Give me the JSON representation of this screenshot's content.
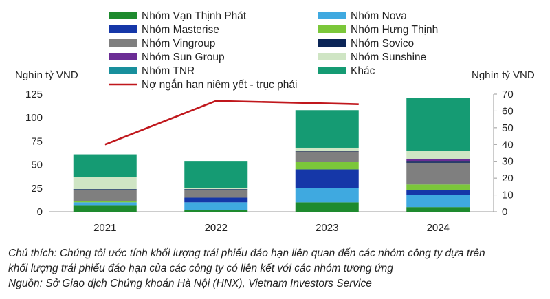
{
  "chart_data": {
    "type": "bar",
    "stacked": true,
    "categories": [
      "2021",
      "2022",
      "2023",
      "2024"
    ],
    "ylabel_left": "Nghìn tỷ VND",
    "ylabel_right": "Nghìn tỷ VND",
    "ylim_left": [
      0,
      125
    ],
    "yticks_left": [
      0,
      25,
      50,
      75,
      100,
      125
    ],
    "ylim_right": [
      0,
      70
    ],
    "yticks_right": [
      0,
      10,
      20,
      30,
      40,
      50,
      60,
      70
    ],
    "grid": false,
    "legend_position": "top",
    "series": [
      {
        "name": "Nhóm Vạn Thịnh Phát",
        "color": "#1e8a2e",
        "values": [
          7,
          2,
          10,
          5
        ]
      },
      {
        "name": "Nhóm Nova",
        "color": "#3fa9e0",
        "values": [
          3,
          8,
          15,
          13
        ]
      },
      {
        "name": "Nhóm Masterise",
        "color": "#1537a8",
        "values": [
          0,
          5,
          20,
          5
        ]
      },
      {
        "name": "Nhóm Hưng Thịnh",
        "color": "#7bc73a",
        "values": [
          1,
          0,
          8,
          6
        ]
      },
      {
        "name": "Nhóm Vingroup",
        "color": "#7f7f7f",
        "values": [
          12,
          8,
          11,
          23
        ]
      },
      {
        "name": "Nhóm Sovico",
        "color": "#0b2557",
        "values": [
          1,
          1,
          1,
          2
        ]
      },
      {
        "name": "Nhóm Sun Group",
        "color": "#6b2d95",
        "values": [
          0,
          0,
          0,
          2
        ]
      },
      {
        "name": "Nhóm Sunshine",
        "color": "#cfe5c4",
        "values": [
          13,
          1,
          3,
          9
        ]
      },
      {
        "name": "Nhóm TNR",
        "color": "#188f9c",
        "values": [
          0,
          0,
          0,
          0
        ]
      },
      {
        "name": "Khác",
        "color": "#159b73",
        "values": [
          24,
          29,
          40,
          56
        ]
      }
    ],
    "line_series": {
      "name": "Nợ ngắn hạn niêm yết - trục phải",
      "color": "#c0171c",
      "axis": "right",
      "values": [
        40,
        66,
        null,
        null
      ],
      "extra_point": {
        "x_position": "2023",
        "value": 64
      }
    }
  },
  "notes": {
    "line1": "Chú thích: Chúng tôi ước tính khối lượng trái phiếu đáo hạn liên quan đến các nhóm công ty dựa trên",
    "line2": "khối lượng trái phiếu đáo hạn của các công ty có liên kết với các nhóm tương ứng",
    "line3": "Nguồn: Sở Giao dịch Chứng khoán Hà Nội (HNX), Vietnam Investors Service"
  }
}
